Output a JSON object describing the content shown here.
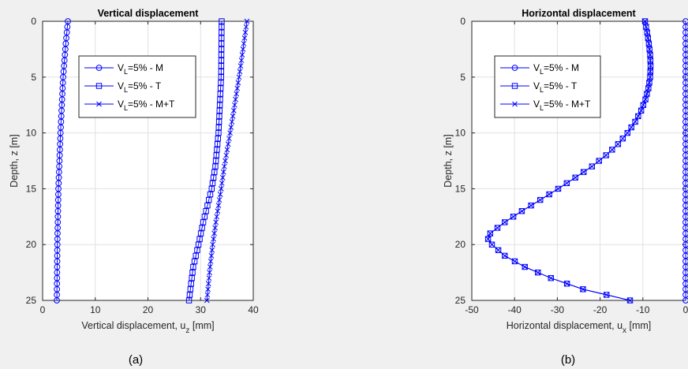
{
  "chart_data": [
    {
      "panel_label": "(a)",
      "type": "line",
      "title": "Vertical displacement",
      "xlabel": {
        "main": "Vertical displacement, u",
        "sub": "z",
        "unit": " [mm]"
      },
      "ylabel": "Depth, z [m]",
      "xlim": [
        0,
        40
      ],
      "ylim": [
        0,
        25
      ],
      "y_reversed": true,
      "grid": true,
      "legend_position": "upper middle",
      "xticks": [
        0,
        10,
        20,
        30,
        40
      ],
      "yticks": [
        0,
        5,
        10,
        15,
        20,
        25
      ],
      "color": "#0000ff",
      "series": [
        {
          "name": "V_L=5% - M",
          "legend": {
            "main": "V",
            "sub": "L",
            "rest": "=5% - M"
          },
          "marker": "circle",
          "depth_step": 0.5,
          "points": [
            [
              0,
              4.8
            ],
            [
              2,
              4.4
            ],
            [
              5,
              3.9
            ],
            [
              10,
              3.4
            ],
            [
              15,
              3.0
            ],
            [
              20,
              2.8
            ],
            [
              25,
              2.7
            ]
          ]
        },
        {
          "name": "V_L=5% - T",
          "legend": {
            "main": "V",
            "sub": "L",
            "rest": "=5% - T"
          },
          "marker": "square",
          "depth_step": 0.5,
          "points": [
            [
              0,
              34.0
            ],
            [
              5,
              33.9
            ],
            [
              10,
              33.4
            ],
            [
              13,
              32.8
            ],
            [
              15,
              32.1
            ],
            [
              18,
              30.5
            ],
            [
              20,
              29.6
            ],
            [
              22,
              28.6
            ],
            [
              25,
              27.8
            ]
          ]
        },
        {
          "name": "V_L=5% - M+T",
          "legend": {
            "main": "V",
            "sub": "L",
            "rest": "=5% - M+T"
          },
          "marker": "x",
          "depth_step": 0.5,
          "points": [
            [
              0,
              38.8
            ],
            [
              3,
              37.9
            ],
            [
              5,
              37.3
            ],
            [
              8,
              36.3
            ],
            [
              10,
              35.6
            ],
            [
              13,
              34.5
            ],
            [
              15,
              33.9
            ],
            [
              18,
              32.9
            ],
            [
              20,
              32.3
            ],
            [
              22,
              31.8
            ],
            [
              25,
              31.2
            ]
          ]
        }
      ]
    },
    {
      "panel_label": "(b)",
      "type": "line",
      "title": "Horizontal displacement",
      "xlabel": {
        "main": "Horizontal displacement, u",
        "sub": "x",
        "unit": " [mm]"
      },
      "ylabel": "Depth, z [m]",
      "xlim": [
        -50,
        0
      ],
      "ylim": [
        0,
        25
      ],
      "y_reversed": true,
      "grid": true,
      "legend_position": "upper left",
      "xticks": [
        -50,
        -40,
        -30,
        -20,
        -10,
        0
      ],
      "yticks": [
        0,
        5,
        10,
        15,
        20,
        25
      ],
      "color": "#0000ff",
      "series": [
        {
          "name": "V_L=5% - M",
          "legend": {
            "main": "V",
            "sub": "L",
            "rest": "=5% - M"
          },
          "marker": "circle",
          "depth_step": 0.5,
          "points": [
            [
              0,
              0
            ],
            [
              25,
              0
            ]
          ]
        },
        {
          "name": "V_L=5% - T",
          "legend": {
            "main": "V",
            "sub": "L",
            "rest": "=5% - T"
          },
          "marker": "square",
          "depth_step": 0.5,
          "points": [
            [
              0,
              -9.5
            ],
            [
              1,
              -9.0
            ],
            [
              2,
              -8.6
            ],
            [
              3,
              -8.3
            ],
            [
              4,
              -8.2
            ],
            [
              5,
              -8.3
            ],
            [
              6,
              -8.7
            ],
            [
              7,
              -9.4
            ],
            [
              8,
              -10.4
            ],
            [
              9,
              -11.8
            ],
            [
              10,
              -13.6
            ],
            [
              11,
              -15.8
            ],
            [
              12,
              -18.6
            ],
            [
              13,
              -21.9
            ],
            [
              14,
              -25.8
            ],
            [
              15,
              -29.8
            ],
            [
              16,
              -34.0
            ],
            [
              17,
              -38.3
            ],
            [
              18,
              -42.3
            ],
            [
              19,
              -45.7
            ],
            [
              19.5,
              -46.2
            ],
            [
              20,
              -45.3
            ],
            [
              21,
              -42.3
            ],
            [
              22,
              -37.6
            ],
            [
              23,
              -31.5
            ],
            [
              24,
              -24.0
            ],
            [
              25,
              -13.0
            ]
          ]
        },
        {
          "name": "V_L=5% - M+T",
          "legend": {
            "main": "V",
            "sub": "L",
            "rest": "=5% - M+T"
          },
          "marker": "x",
          "depth_step": 0.5,
          "points": [
            [
              0,
              -9.5
            ],
            [
              1,
              -9.0
            ],
            [
              2,
              -8.6
            ],
            [
              3,
              -8.3
            ],
            [
              4,
              -8.2
            ],
            [
              5,
              -8.3
            ],
            [
              6,
              -8.7
            ],
            [
              7,
              -9.4
            ],
            [
              8,
              -10.4
            ],
            [
              9,
              -11.8
            ],
            [
              10,
              -13.6
            ],
            [
              11,
              -15.8
            ],
            [
              12,
              -18.6
            ],
            [
              13,
              -21.9
            ],
            [
              14,
              -25.8
            ],
            [
              15,
              -29.8
            ],
            [
              16,
              -34.0
            ],
            [
              17,
              -38.3
            ],
            [
              18,
              -42.3
            ],
            [
              19,
              -45.7
            ],
            [
              19.5,
              -46.2
            ],
            [
              20,
              -45.3
            ],
            [
              21,
              -42.3
            ],
            [
              22,
              -37.6
            ],
            [
              23,
              -31.5
            ],
            [
              24,
              -24.0
            ],
            [
              25,
              -13.0
            ]
          ]
        }
      ]
    }
  ]
}
